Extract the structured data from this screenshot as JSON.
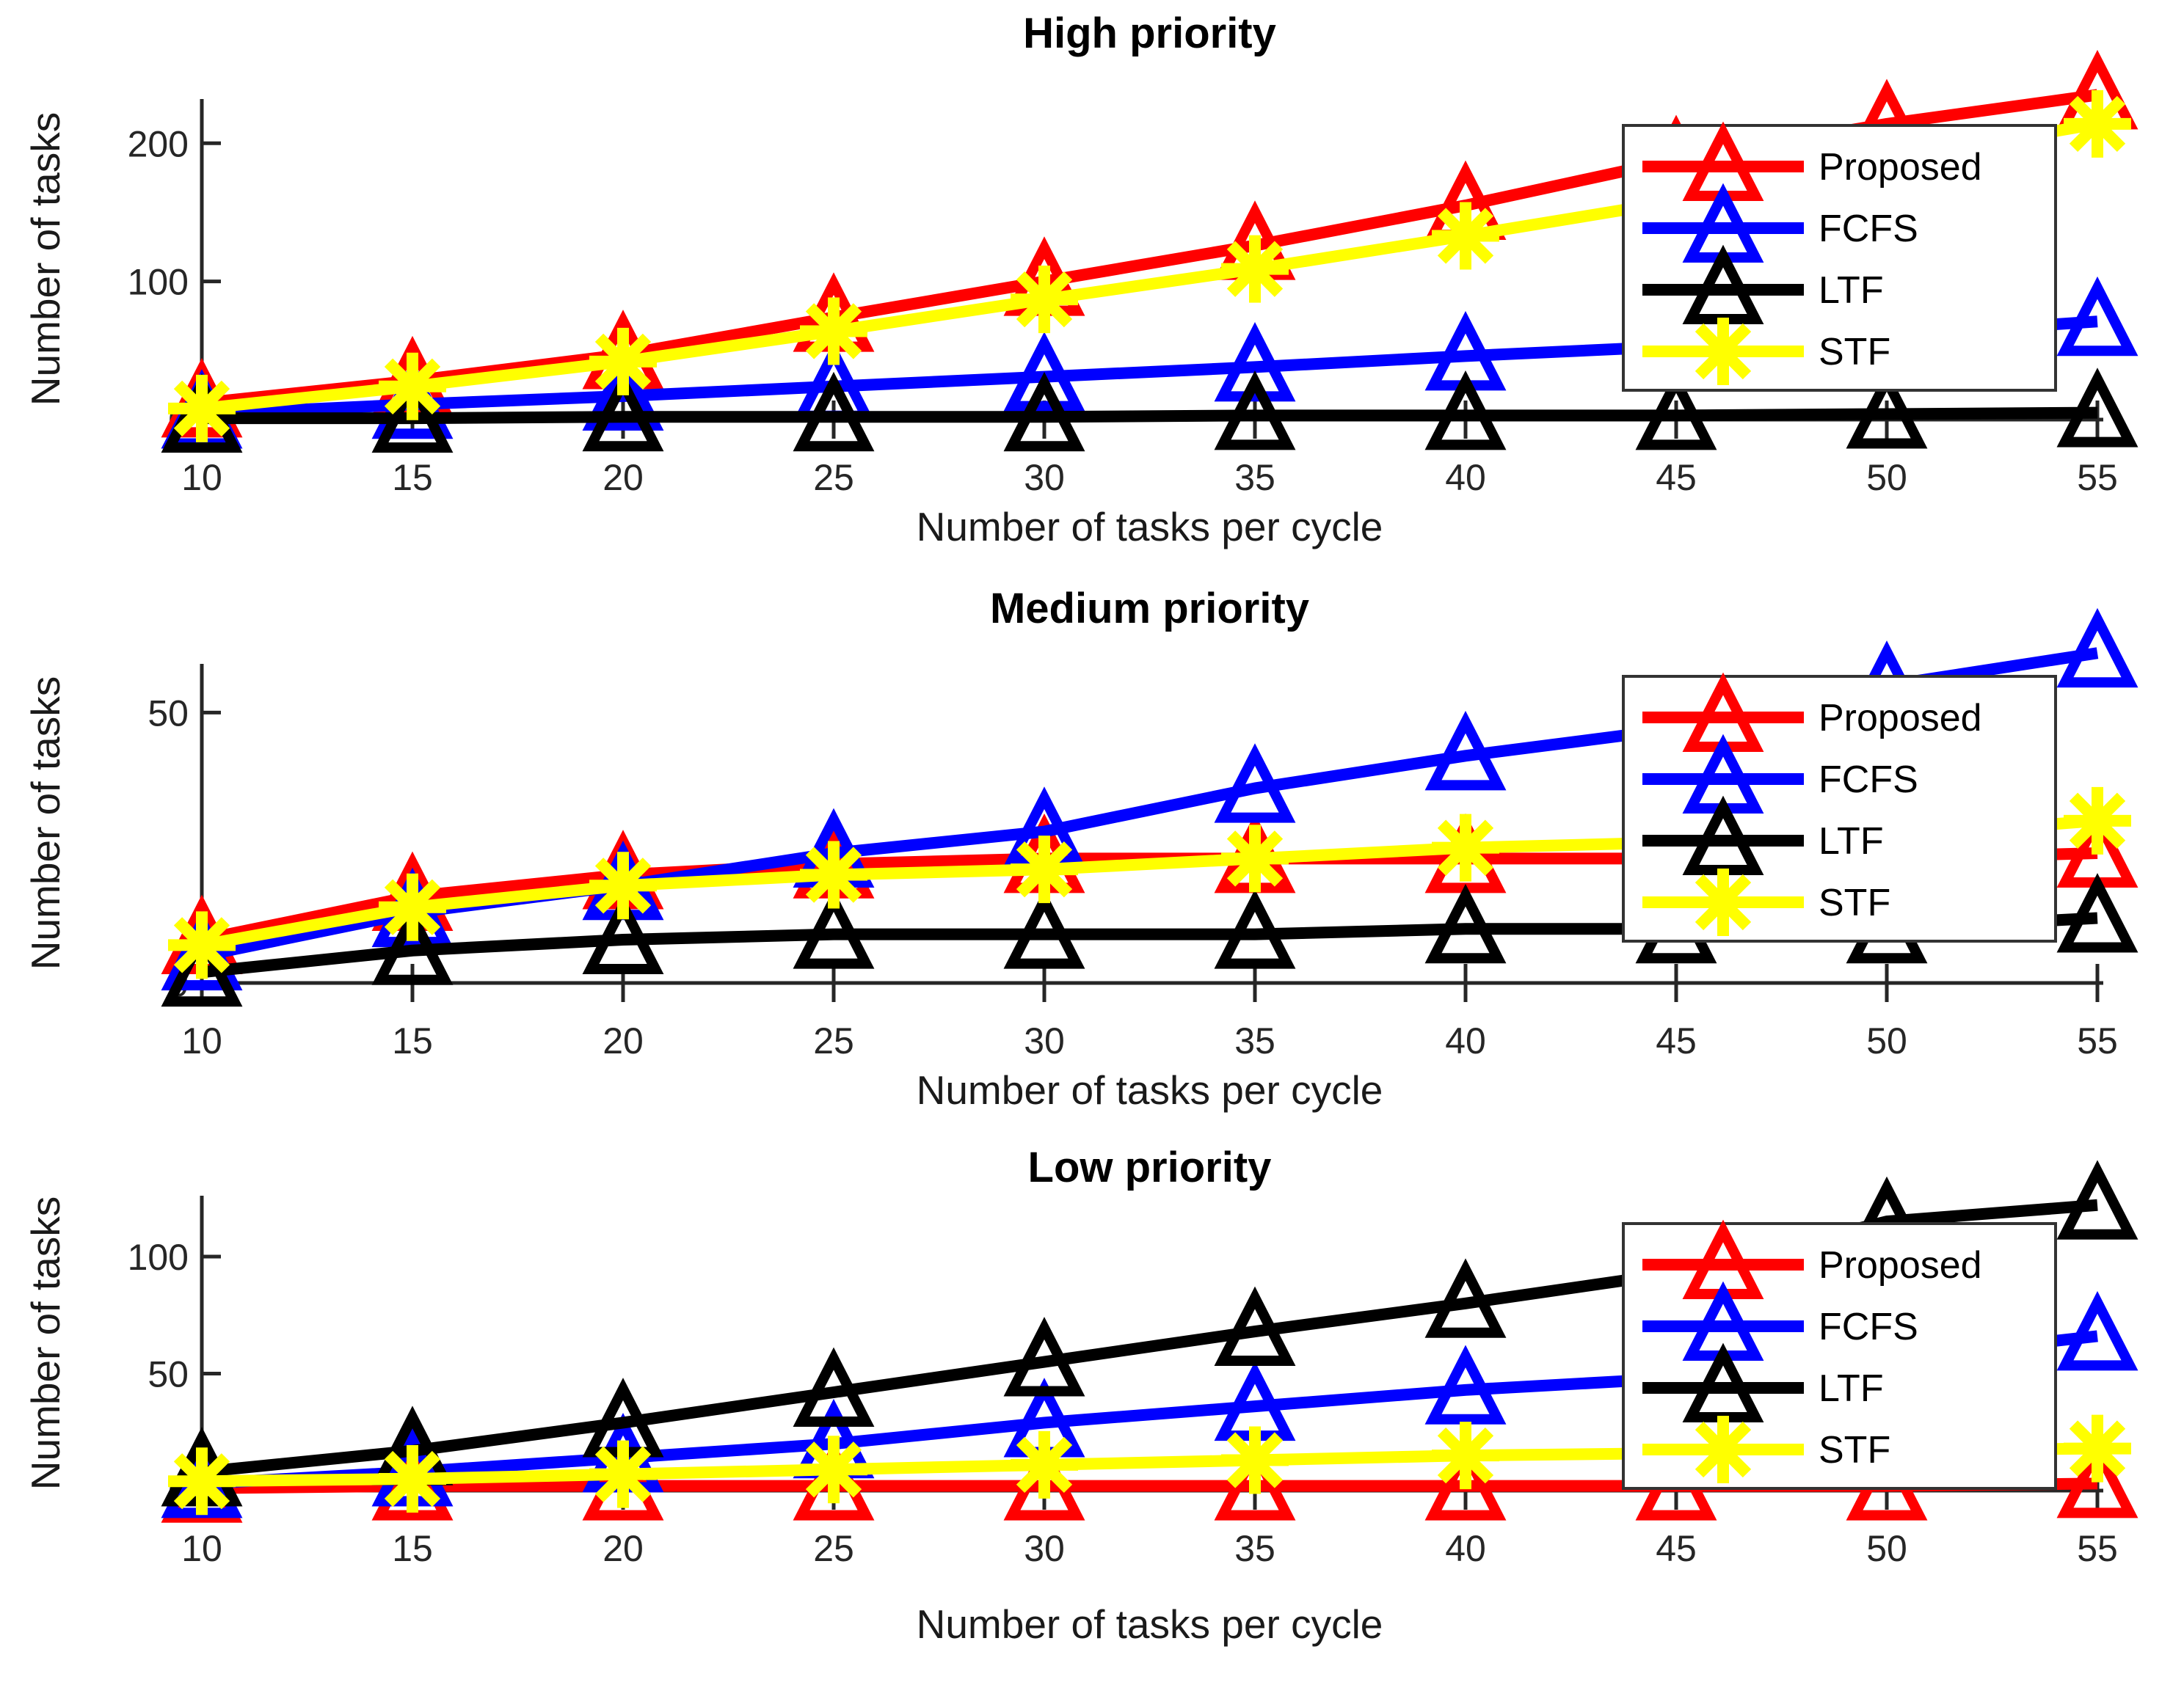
{
  "figure": {
    "background": "#ffffff",
    "axis_color": "#262626",
    "tick_label_color": "#262626",
    "legend_border_color": "#333333",
    "legend_background": "#ffffff"
  },
  "chart_data": [
    {
      "type": "line",
      "title": "High priority",
      "xlabel": "Number of tasks per cycle",
      "ylabel": "Number of tasks",
      "x": [
        10,
        15,
        20,
        25,
        30,
        35,
        40,
        45,
        50,
        55
      ],
      "xticks": [
        10,
        15,
        20,
        25,
        30,
        35,
        40,
        45,
        50,
        55
      ],
      "yticks": [
        0,
        100,
        200
      ],
      "xlim": [
        10,
        55
      ],
      "ylim": [
        0,
        232
      ],
      "grid": false,
      "legend_position": "upper right",
      "legend": [
        "Proposed",
        "FCFS",
        "LTF",
        "STF"
      ],
      "series": [
        {
          "name": "Proposed",
          "color": "#ff0000",
          "marker": "triangle-up",
          "values": [
            12,
            28,
            47,
            74,
            100,
            126,
            155,
            188,
            214,
            235
          ]
        },
        {
          "name": "FCFS",
          "color": "#0000ff",
          "marker": "triangle-up",
          "values": [
            4,
            11,
            17,
            24,
            31,
            38,
            46,
            53,
            61,
            71
          ]
        },
        {
          "name": "LTF",
          "color": "#000000",
          "marker": "triangle-up",
          "values": [
            1,
            1,
            2,
            2,
            2,
            3,
            3,
            3,
            4,
            5
          ]
        },
        {
          "name": "STF",
          "color": "#ffff00",
          "marker": "asterisk",
          "values": [
            8,
            24,
            42,
            64,
            87,
            109,
            133,
            158,
            188,
            214
          ]
        }
      ]
    },
    {
      "type": "line",
      "title": "Medium priority",
      "xlabel": "Number of tasks per cycle",
      "ylabel": "Number of tasks",
      "x": [
        10,
        15,
        20,
        25,
        30,
        35,
        40,
        45,
        50,
        55
      ],
      "xticks": [
        10,
        15,
        20,
        25,
        30,
        35,
        40,
        45,
        50,
        55
      ],
      "yticks": [
        0,
        50
      ],
      "xlim": [
        10,
        55
      ],
      "ylim": [
        0,
        59
      ],
      "grid": false,
      "legend_position": "right",
      "legend": [
        "Proposed",
        "FCFS",
        "LTF",
        "STF"
      ],
      "series": [
        {
          "name": "Proposed",
          "color": "#ff0000",
          "marker": "triangle-up",
          "values": [
            8,
            16,
            20,
            22,
            23,
            23,
            23,
            23,
            23,
            24
          ]
        },
        {
          "name": "FCFS",
          "color": "#0000ff",
          "marker": "triangle-up",
          "values": [
            5,
            13,
            18,
            24,
            28,
            36,
            42,
            47,
            55,
            61
          ]
        },
        {
          "name": "LTF",
          "color": "#000000",
          "marker": "triangle-up",
          "values": [
            2,
            6,
            8,
            9,
            9,
            9,
            10,
            10,
            10,
            12
          ]
        },
        {
          "name": "STF",
          "color": "#ffff00",
          "marker": "asterisk",
          "values": [
            7,
            14,
            18,
            20,
            21,
            23,
            25,
            26,
            27,
            30
          ]
        }
      ]
    },
    {
      "type": "line",
      "title": "Low priority",
      "xlabel": "Number of tasks per cycle",
      "ylabel": "Number of tasks",
      "x": [
        10,
        15,
        20,
        25,
        30,
        35,
        40,
        45,
        50,
        55
      ],
      "xticks": [
        10,
        15,
        20,
        25,
        30,
        35,
        40,
        45,
        50,
        55
      ],
      "yticks": [
        0,
        50,
        100
      ],
      "xlim": [
        10,
        55
      ],
      "ylim": [
        0,
        126
      ],
      "grid": false,
      "legend_position": "right",
      "legend": [
        "Proposed",
        "FCFS",
        "LTF",
        "STF"
      ],
      "series": [
        {
          "name": "Proposed",
          "color": "#ff0000",
          "marker": "triangle-up",
          "values": [
            1,
            2,
            2,
            2,
            2,
            2,
            2,
            2,
            2,
            3
          ]
        },
        {
          "name": "FCFS",
          "color": "#0000ff",
          "marker": "triangle-up",
          "values": [
            3,
            8,
            14,
            20,
            29,
            36,
            43,
            48,
            56,
            66
          ]
        },
        {
          "name": "LTF",
          "color": "#000000",
          "marker": "triangle-up",
          "values": [
            8,
            17,
            29,
            42,
            55,
            68,
            80,
            93,
            115,
            122
          ]
        },
        {
          "name": "STF",
          "color": "#ffff00",
          "marker": "asterisk",
          "values": [
            4,
            5,
            7,
            9,
            11,
            13,
            15,
            16,
            17,
            18
          ]
        }
      ]
    }
  ]
}
